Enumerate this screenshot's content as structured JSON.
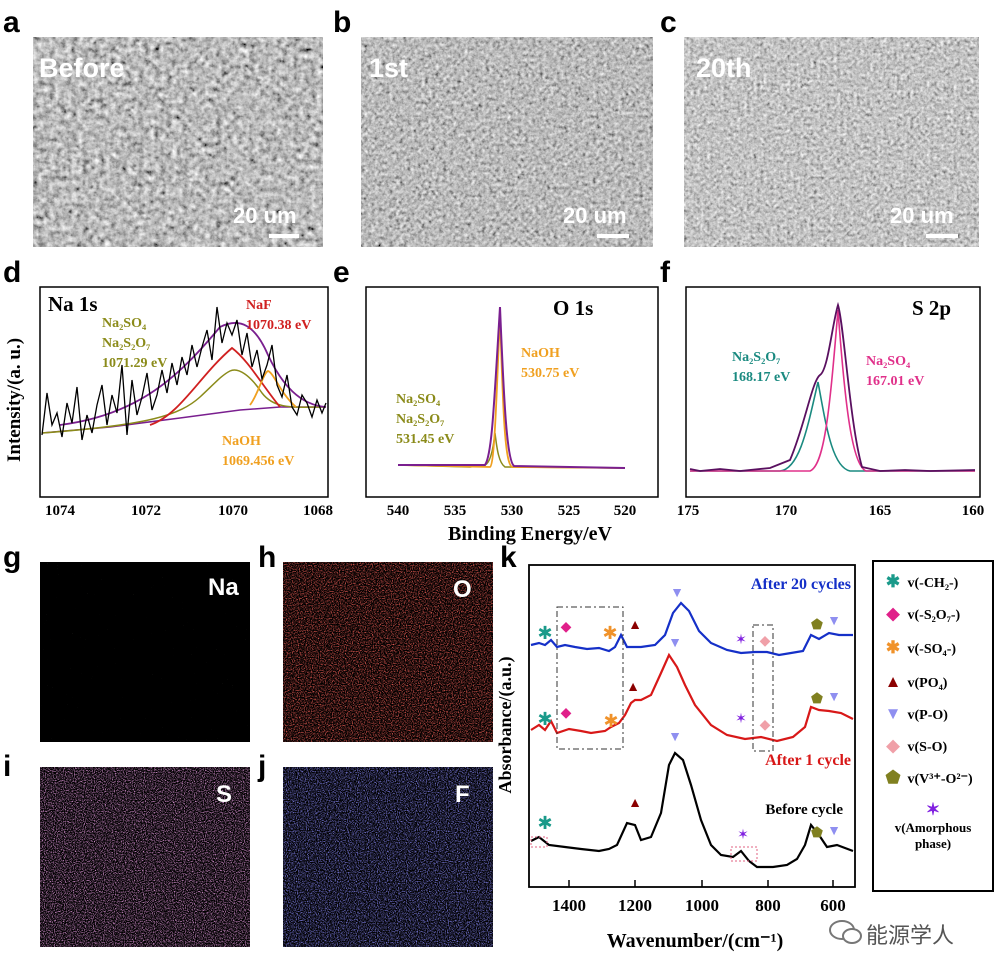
{
  "panels": {
    "a": {
      "letter": "a",
      "label": "Before",
      "scale": "20 um"
    },
    "b": {
      "letter": "b",
      "label": "1st",
      "scale": "20 um"
    },
    "c": {
      "letter": "c",
      "label": "20th",
      "scale": "20 um"
    },
    "d": {
      "letter": "d"
    },
    "e": {
      "letter": "e"
    },
    "f": {
      "letter": "f"
    },
    "g": {
      "letter": "g",
      "element": "Na"
    },
    "h": {
      "letter": "h",
      "element": "O"
    },
    "i": {
      "letter": "i",
      "element": "S"
    },
    "j": {
      "letter": "j",
      "element": "F"
    },
    "k": {
      "letter": "k"
    }
  },
  "xps_shared": {
    "ylabel": "Intensity/(a. u.)",
    "xlabel": "Binding Energy/eV"
  },
  "xps_d": {
    "title": "Na 1s",
    "ticks": [
      "1074",
      "1072",
      "1070",
      "1068"
    ],
    "ann_na2so4_1": "Na₂SO₄",
    "ann_na2so4_2": "Na₂S₂O₇",
    "ann_na2so4_3": "1071.29 eV",
    "ann_naf_1": "NaF",
    "ann_naf_2": "1070.38 eV",
    "ann_naoh_1": "NaOH",
    "ann_naoh_2": "1069.456 eV"
  },
  "xps_e": {
    "title": "O 1s",
    "ticks": [
      "540",
      "535",
      "530",
      "525",
      "520"
    ],
    "ann_naoh_1": "NaOH",
    "ann_naoh_2": "530.75 eV",
    "ann_na2so4_1": "Na₂SO₄",
    "ann_na2so4_2": "Na₂S₂O₇",
    "ann_na2so4_3": "531.45 eV"
  },
  "xps_f": {
    "title": "S 2p",
    "ticks": [
      "175",
      "170",
      "165",
      "160"
    ],
    "ann_s2o7_1": "Na₂S₂O₇",
    "ann_s2o7_2": "168.17 eV",
    "ann_so4_1": "Na₂SO₄",
    "ann_so4_2": "167.01 eV"
  },
  "ftir": {
    "ylabel": "Absorbance/(a.u.)",
    "xlabel": "Wavenumber/(cm⁻¹)",
    "ticks": [
      "1400",
      "1200",
      "1000",
      "800",
      "600"
    ],
    "curve_labels": [
      "After 20 cycles",
      "After 1 cycle",
      "Before cycle"
    ]
  },
  "legend": {
    "items": [
      {
        "sym": "✱",
        "color": "#1a9a8a",
        "label": "v(-CH₂-)"
      },
      {
        "sym": "◆",
        "color": "#e0208a",
        "label": "v(-S₂O₇-)"
      },
      {
        "sym": "✱",
        "color": "#f0922a",
        "label": "v(-SO₄-)"
      },
      {
        "sym": "▲",
        "color": "#8b0000",
        "label": "v(PO₄)"
      },
      {
        "sym": "▼",
        "color": "#8f8ff0",
        "label": "v(P-O)"
      },
      {
        "sym": "◆",
        "color": "#f0a0a8",
        "label": "v(S-O)"
      },
      {
        "sym": "⬟",
        "color": "#808020",
        "label": "v(V³⁺-O²⁻)"
      }
    ],
    "amorph_sym": "✶",
    "amorph_1": "v(Amorphous",
    "amorph_2": "phase)"
  },
  "watermark": "能源学人",
  "colors": {
    "blue": "#1530c8",
    "red": "#d81818",
    "black": "#000000",
    "purple": "#7a1f8f",
    "olive": "#8b8b1a",
    "red_fit": "#d02020",
    "orange": "#f0a020",
    "teal": "#1a8a80",
    "magenta": "#e0308a"
  }
}
